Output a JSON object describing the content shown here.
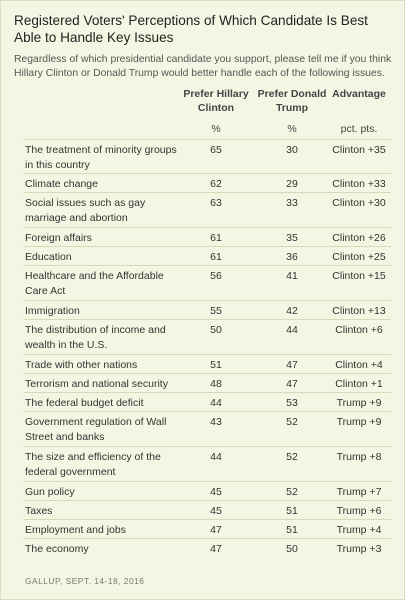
{
  "title": "Registered Voters' Perceptions of Which Candidate Is Best Able to Handle Key Issues",
  "subtitle": "Regardless of which presidential candidate you support, please tell me if you think Hillary Clinton or Donald Trump would better handle each of the following issues.",
  "columns": {
    "clinton": {
      "header": "Prefer Hillary Clinton",
      "unit": "%"
    },
    "trump": {
      "header": "Prefer Donald Trump",
      "unit": "%"
    },
    "advantage": {
      "header": "Advantage",
      "unit": "pct. pts."
    }
  },
  "rows": [
    {
      "issue": "The treatment of minority groups in this country",
      "clinton": "65",
      "trump": "30",
      "advantage": "Clinton +35"
    },
    {
      "issue": "Climate change",
      "clinton": "62",
      "trump": "29",
      "advantage": "Clinton +33"
    },
    {
      "issue": "Social issues such as gay marriage and abortion",
      "clinton": "63",
      "trump": "33",
      "advantage": "Clinton +30"
    },
    {
      "issue": "Foreign affairs",
      "clinton": "61",
      "trump": "35",
      "advantage": "Clinton +26"
    },
    {
      "issue": "Education",
      "clinton": "61",
      "trump": "36",
      "advantage": "Clinton +25"
    },
    {
      "issue": "Healthcare and the Affordable Care Act",
      "clinton": "56",
      "trump": "41",
      "advantage": "Clinton +15"
    },
    {
      "issue": "Immigration",
      "clinton": "55",
      "trump": "42",
      "advantage": "Clinton +13"
    },
    {
      "issue": "The distribution of income and wealth in the U.S.",
      "clinton": "50",
      "trump": "44",
      "advantage": "Clinton +6"
    },
    {
      "issue": "Trade with other nations",
      "clinton": "51",
      "trump": "47",
      "advantage": "Clinton +4"
    },
    {
      "issue": "Terrorism and national security",
      "clinton": "48",
      "trump": "47",
      "advantage": "Clinton +1"
    },
    {
      "issue": "The federal budget deficit",
      "clinton": "44",
      "trump": "53",
      "advantage": "Trump +9"
    },
    {
      "issue": "Government regulation of Wall Street and banks",
      "clinton": "43",
      "trump": "52",
      "advantage": "Trump +9"
    },
    {
      "issue": "The size and efficiency of the federal government",
      "clinton": "44",
      "trump": "52",
      "advantage": "Trump +8"
    },
    {
      "issue": "Gun policy",
      "clinton": "45",
      "trump": "52",
      "advantage": "Trump +7"
    },
    {
      "issue": "Taxes",
      "clinton": "45",
      "trump": "51",
      "advantage": "Trump +6"
    },
    {
      "issue": "Employment and jobs",
      "clinton": "47",
      "trump": "51",
      "advantage": "Trump +4"
    },
    {
      "issue": "The economy",
      "clinton": "47",
      "trump": "50",
      "advantage": "Trump +3"
    }
  ],
  "source": "GALLUP, SEPT. 14-18, 2016",
  "colors": {
    "background": "#f2f7e3",
    "rule": "#d2dcbb"
  }
}
